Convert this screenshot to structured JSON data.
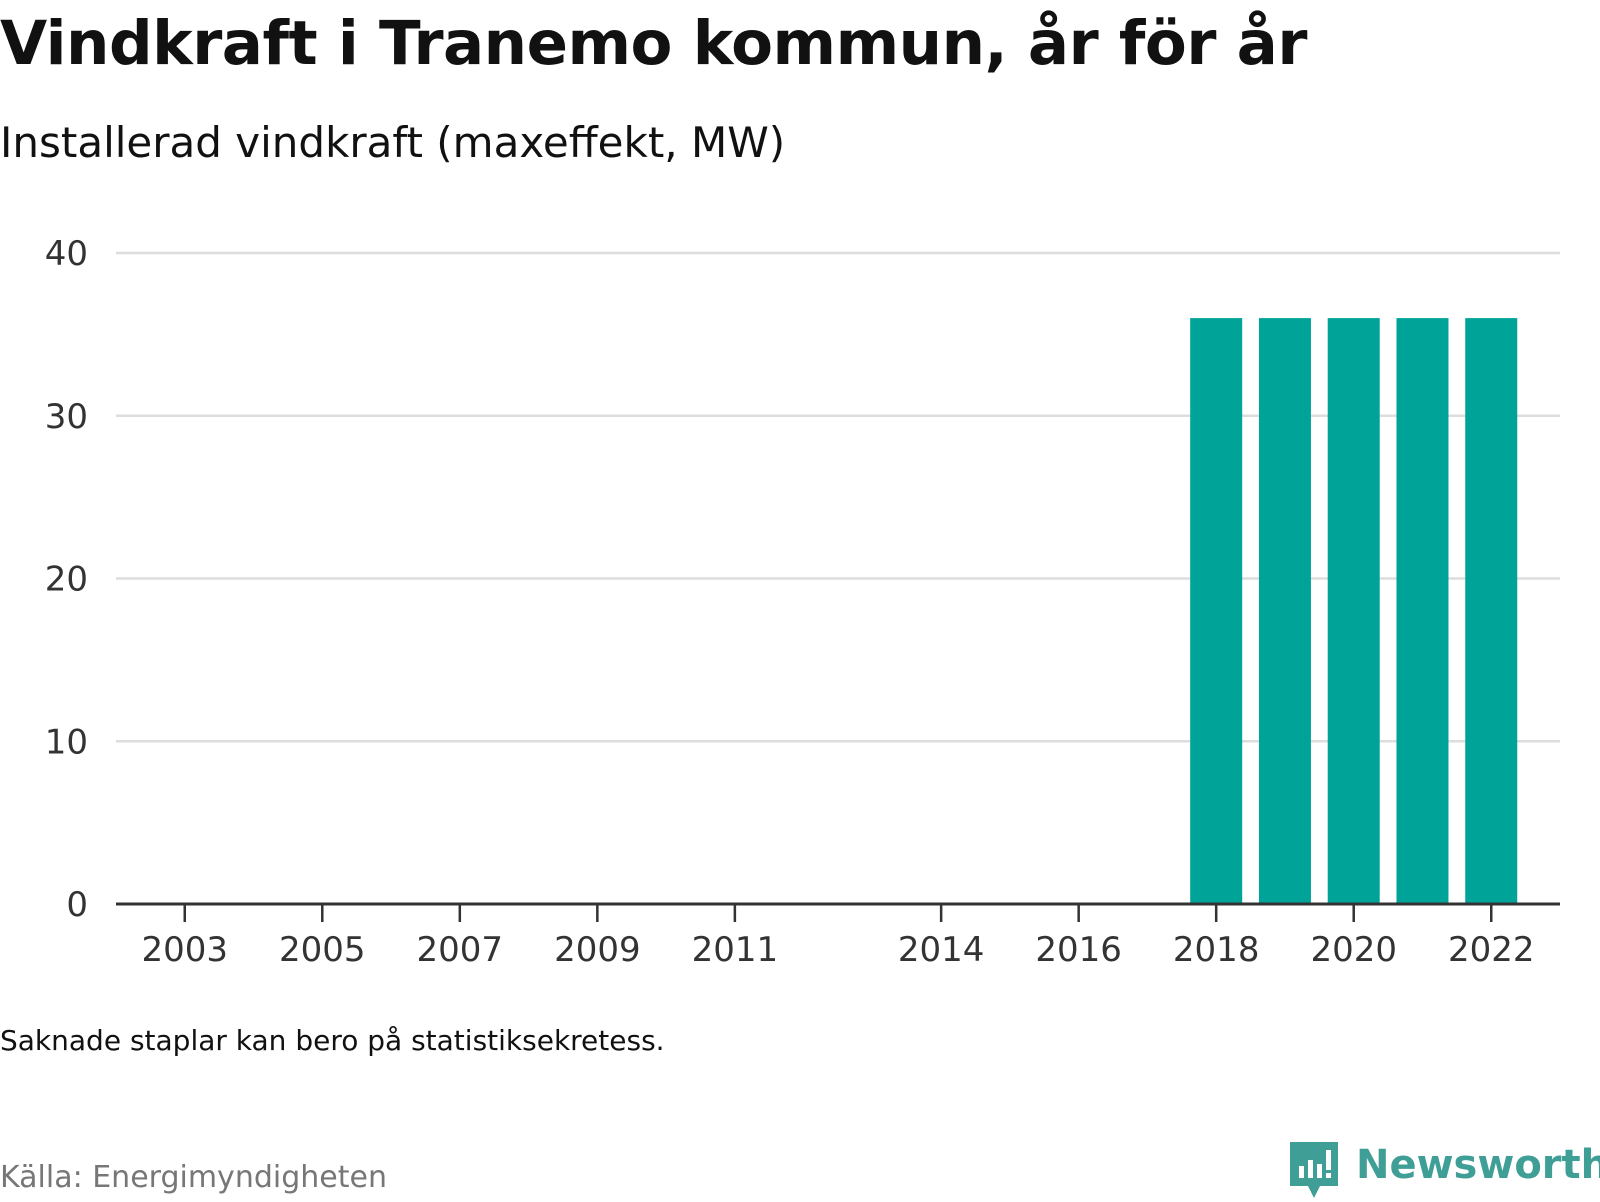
{
  "title": "Vindkraft i Tranemo kommun, år för år",
  "subtitle": "Installerad vindkraft (maxeffekt, MW)",
  "note": "Saknade staplar kan bero på statistiksekretess.",
  "source": "Källa: Energimyndigheten",
  "brand": {
    "name": "Newsworthy",
    "icon": "newsworthy-logo-icon",
    "color": "#3f9f97"
  },
  "colors": {
    "bar": "#00a398",
    "grid": "#dddddd",
    "axis": "#333333"
  },
  "chart_data": {
    "type": "bar",
    "title": "Vindkraft i Tranemo kommun, år för år",
    "subtitle": "Installerad vindkraft (maxeffekt, MW)",
    "xlabel": "",
    "ylabel": "",
    "xlim": [
      2002,
      2023
    ],
    "ylim": [
      0,
      40
    ],
    "yticks": [
      0,
      10,
      20,
      30,
      40
    ],
    "xticks": [
      2003,
      2005,
      2007,
      2009,
      2011,
      2014,
      2016,
      2018,
      2020,
      2022
    ],
    "grid": true,
    "legend": "none",
    "categories": [
      2018,
      2019,
      2020,
      2021,
      2022
    ],
    "values": [
      36,
      36,
      36,
      36,
      36
    ]
  }
}
